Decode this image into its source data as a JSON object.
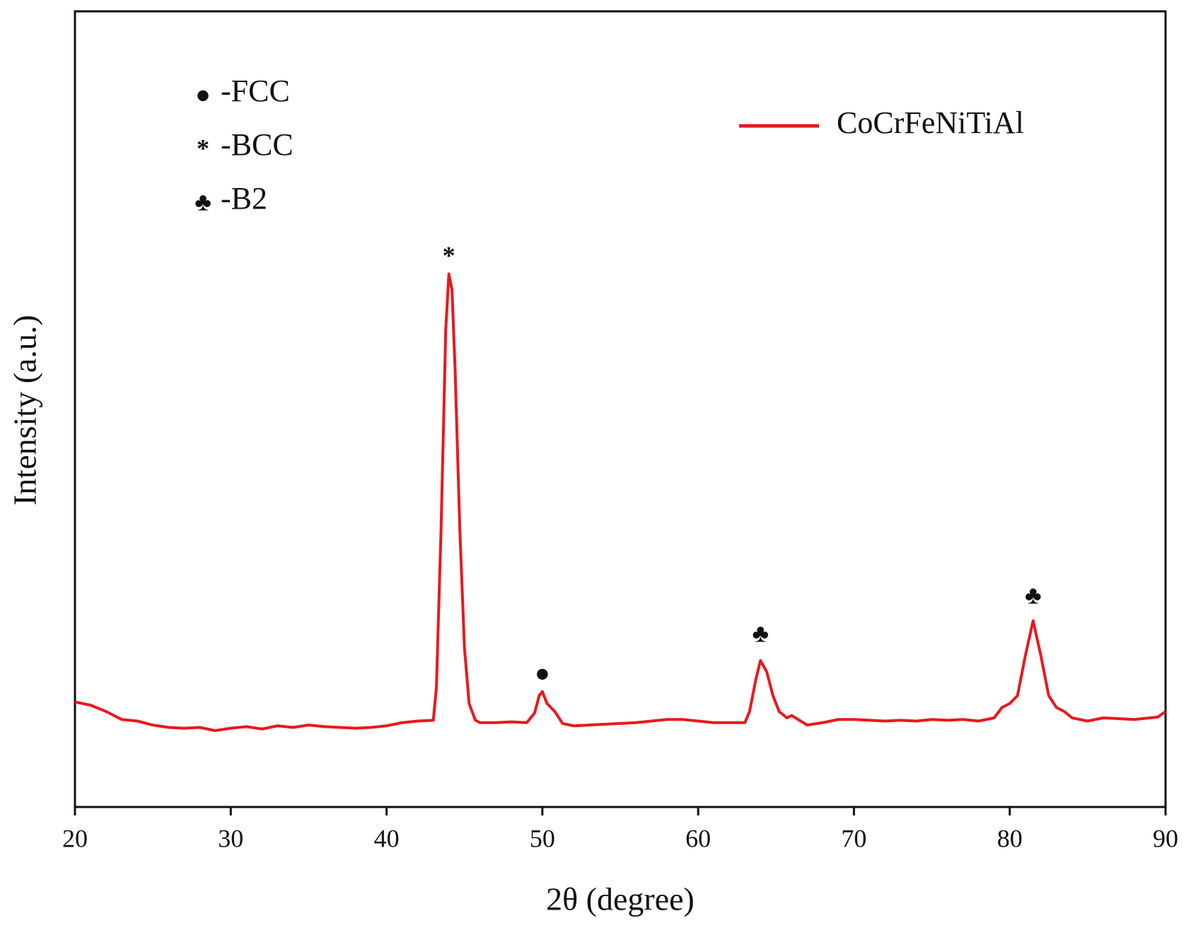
{
  "chart_data": {
    "type": "line",
    "xlabel": "2θ (degree)",
    "ylabel": "Intensity (a.u.)",
    "xlim": [
      20,
      90
    ],
    "ylim": [
      0,
      100
    ],
    "xticks": [
      20,
      30,
      40,
      50,
      60,
      70,
      80,
      90
    ],
    "legend": "upper right",
    "x": [
      20,
      21,
      22,
      23,
      24,
      25,
      26,
      27,
      28,
      29,
      30,
      31,
      32,
      33,
      34,
      35,
      36,
      37,
      38,
      39,
      40,
      41,
      42,
      43,
      43.2,
      43.5,
      43.8,
      44,
      44.2,
      44.4,
      44.7,
      45,
      45.3,
      45.7,
      46,
      47,
      48,
      49,
      49.5,
      49.8,
      50,
      50.3,
      50.8,
      51.3,
      52,
      53,
      54,
      55,
      56,
      57,
      58,
      59,
      60,
      61,
      62,
      63,
      63.3,
      63.7,
      64,
      64.4,
      64.8,
      65.2,
      65.7,
      66,
      67,
      68,
      69,
      70,
      71,
      72,
      73,
      74,
      75,
      76,
      77,
      78,
      79,
      79.5,
      80,
      80.5,
      81,
      81.5,
      82,
      82.5,
      83,
      83.5,
      84,
      85,
      86,
      87,
      88,
      89,
      89.5,
      90
    ],
    "series": [
      {
        "name": "CoCrFeNiTiAl",
        "color": "#e8191c",
        "values": [
          13.2,
          12.8,
          12.0,
          11.0,
          10.8,
          10.3,
          10.0,
          9.9,
          10.0,
          9.6,
          9.9,
          10.1,
          9.8,
          10.2,
          10.0,
          10.3,
          10.1,
          10.0,
          9.9,
          10.0,
          10.2,
          10.6,
          10.8,
          10.9,
          15,
          35,
          60,
          67,
          65,
          55,
          35,
          20,
          13,
          10.9,
          10.6,
          10.6,
          10.7,
          10.6,
          11.8,
          14.0,
          14.5,
          13,
          12.0,
          10.5,
          10.2,
          10.3,
          10.4,
          10.5,
          10.6,
          10.8,
          11.0,
          11.0,
          10.8,
          10.6,
          10.6,
          10.6,
          12,
          16,
          18.4,
          17,
          14,
          12,
          11.2,
          11.5,
          10.3,
          10.6,
          11.0,
          11.0,
          10.9,
          10.8,
          10.9,
          10.8,
          11.0,
          10.9,
          11.0,
          10.8,
          11.2,
          12.5,
          13.0,
          14,
          19,
          23.4,
          19,
          14,
          12.5,
          12.0,
          11.2,
          10.8,
          11.2,
          11.1,
          11.0,
          11.2,
          11.3,
          12.0
        ]
      }
    ],
    "annotations": [
      {
        "text": "*",
        "x": 44,
        "y": 69
      },
      {
        "text": "●",
        "x": 50,
        "y": 16.5
      },
      {
        "text": "♣",
        "x": 64,
        "y": 21.5
      },
      {
        "text": "♣",
        "x": 81.5,
        "y": 26.3
      }
    ],
    "phase_legend": [
      {
        "symbol": "●",
        "label": "-FCC"
      },
      {
        "symbol": "*",
        "label": "-BCC"
      },
      {
        "symbol": "♣",
        "label": "-B2"
      }
    ]
  }
}
